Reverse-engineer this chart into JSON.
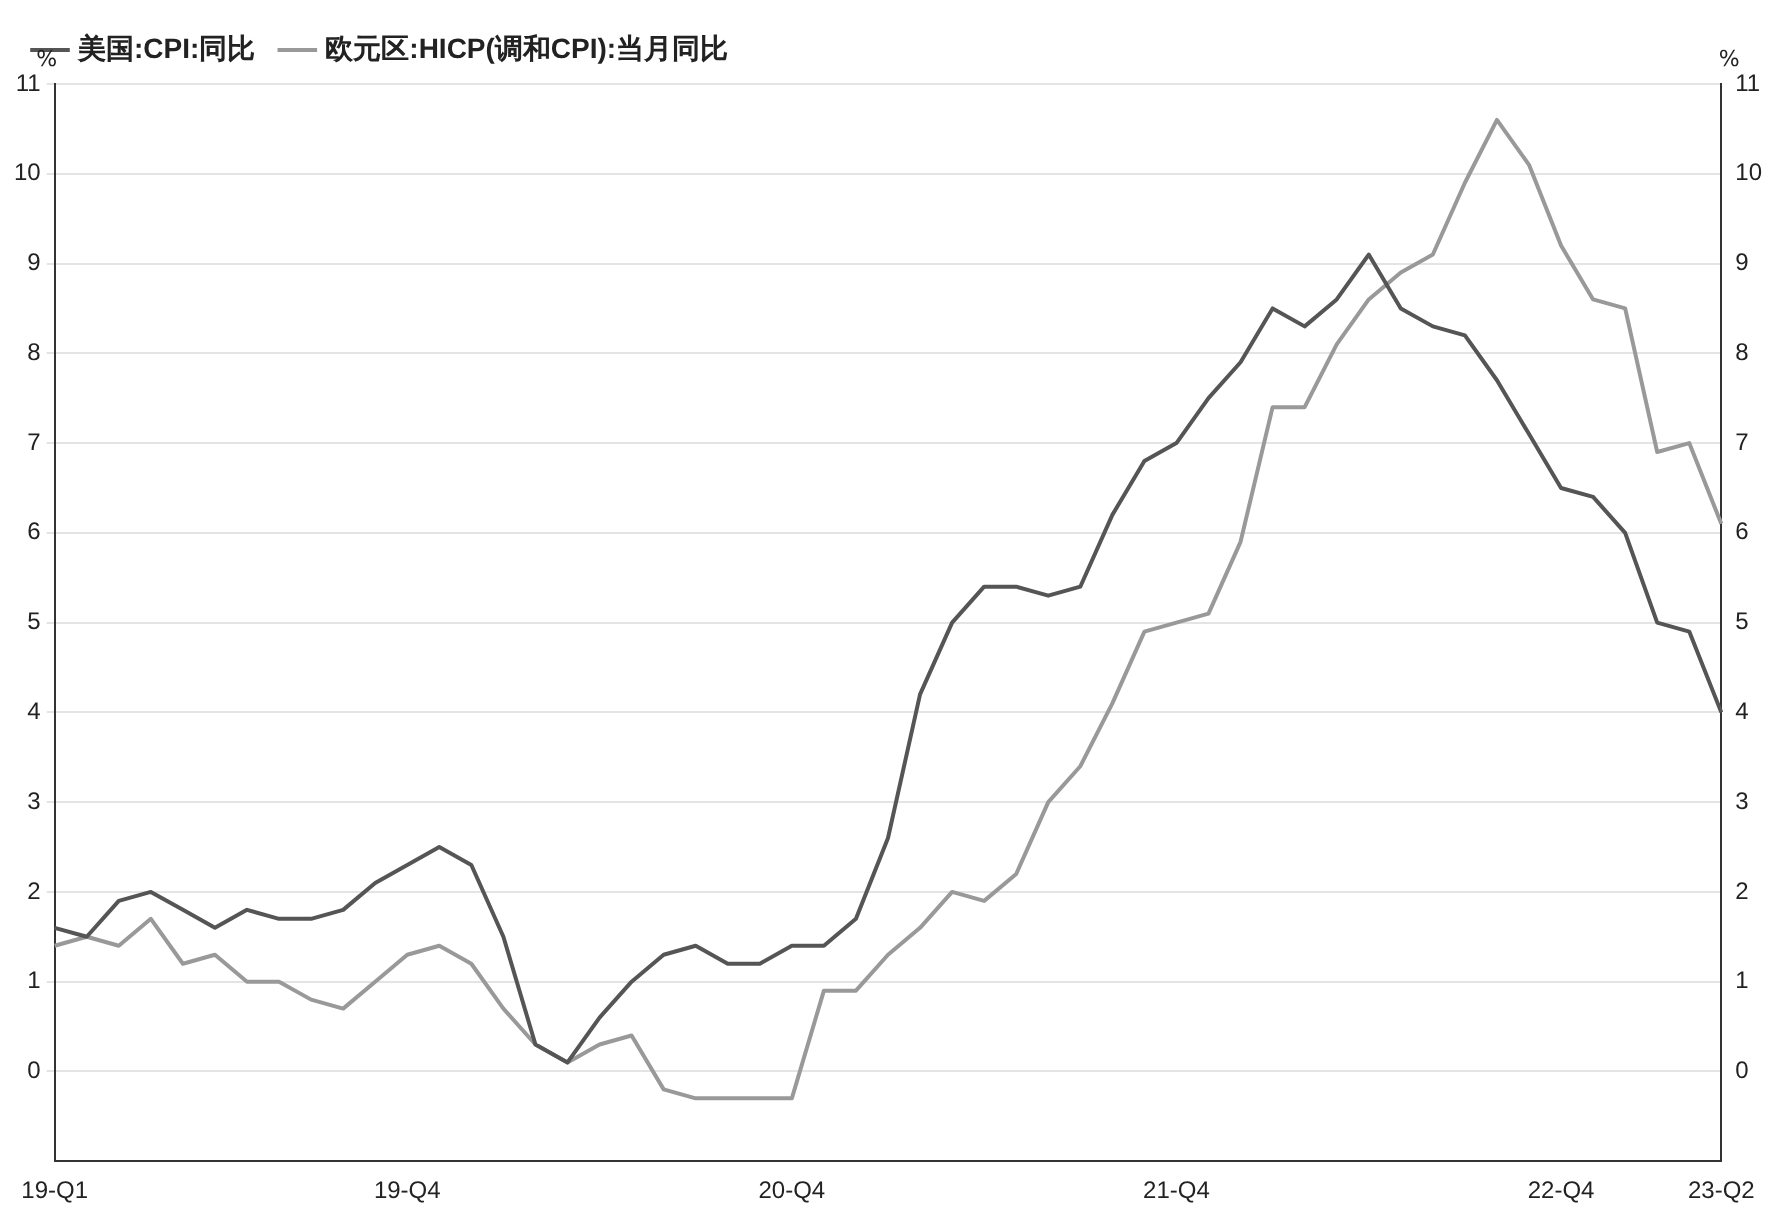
{
  "chart_data": {
    "type": "line",
    "ylabel": "%",
    "y2label": "%",
    "categories": [
      "19-Q1",
      null,
      null,
      null,
      null,
      null,
      null,
      null,
      null,
      null,
      null,
      "19-Q4",
      null,
      null,
      null,
      null,
      null,
      null,
      null,
      null,
      null,
      null,
      null,
      "20-Q4",
      null,
      null,
      null,
      null,
      null,
      null,
      null,
      null,
      null,
      null,
      null,
      "21-Q4",
      null,
      null,
      null,
      null,
      null,
      null,
      null,
      null,
      null,
      null,
      null,
      "22-Q4",
      null,
      null,
      null,
      null,
      "23-Q2"
    ],
    "series": [
      {
        "name": "美国:CPI:同比",
        "color": "#555555",
        "values": [
          1.6,
          1.5,
          1.9,
          2.0,
          1.8,
          1.6,
          1.8,
          1.7,
          1.7,
          1.8,
          2.1,
          2.3,
          2.5,
          2.3,
          1.5,
          0.3,
          0.1,
          0.6,
          1.0,
          1.3,
          1.4,
          1.2,
          1.2,
          1.4,
          1.4,
          1.7,
          2.6,
          4.2,
          5.0,
          5.4,
          5.4,
          5.3,
          5.4,
          6.2,
          6.8,
          7.0,
          7.5,
          7.9,
          8.5,
          8.3,
          8.6,
          9.1,
          8.5,
          8.3,
          8.2,
          7.7,
          7.1,
          6.5,
          6.4,
          6.0,
          5.0,
          4.9,
          4.0
        ]
      },
      {
        "name": "欧元区:HICP(调和CPI):当月同比",
        "color": "#999999",
        "values": [
          1.4,
          1.5,
          1.4,
          1.7,
          1.2,
          1.3,
          1.0,
          1.0,
          0.8,
          0.7,
          1.0,
          1.3,
          1.4,
          1.2,
          0.7,
          0.3,
          0.1,
          0.3,
          0.4,
          -0.2,
          -0.3,
          -0.3,
          -0.3,
          -0.3,
          0.9,
          0.9,
          1.3,
          1.6,
          2.0,
          1.9,
          2.2,
          3.0,
          3.4,
          4.1,
          4.9,
          5.0,
          5.1,
          5.9,
          7.4,
          7.4,
          8.1,
          8.6,
          8.9,
          9.1,
          9.9,
          10.6,
          10.1,
          9.2,
          8.6,
          8.5,
          6.9,
          7.0,
          6.1
        ]
      }
    ],
    "ylim": [
      -1,
      11
    ],
    "yticks": [
      0,
      1,
      2,
      3,
      4,
      5,
      6,
      7,
      8,
      9,
      10,
      11
    ],
    "y2lim": [
      -1,
      11
    ],
    "y2ticks": [
      0,
      1,
      2,
      3,
      4,
      5,
      6,
      7,
      8,
      9,
      10,
      11
    ],
    "grid": "y",
    "legend": "top left",
    "marker": "none",
    "line_style": "solid"
  }
}
